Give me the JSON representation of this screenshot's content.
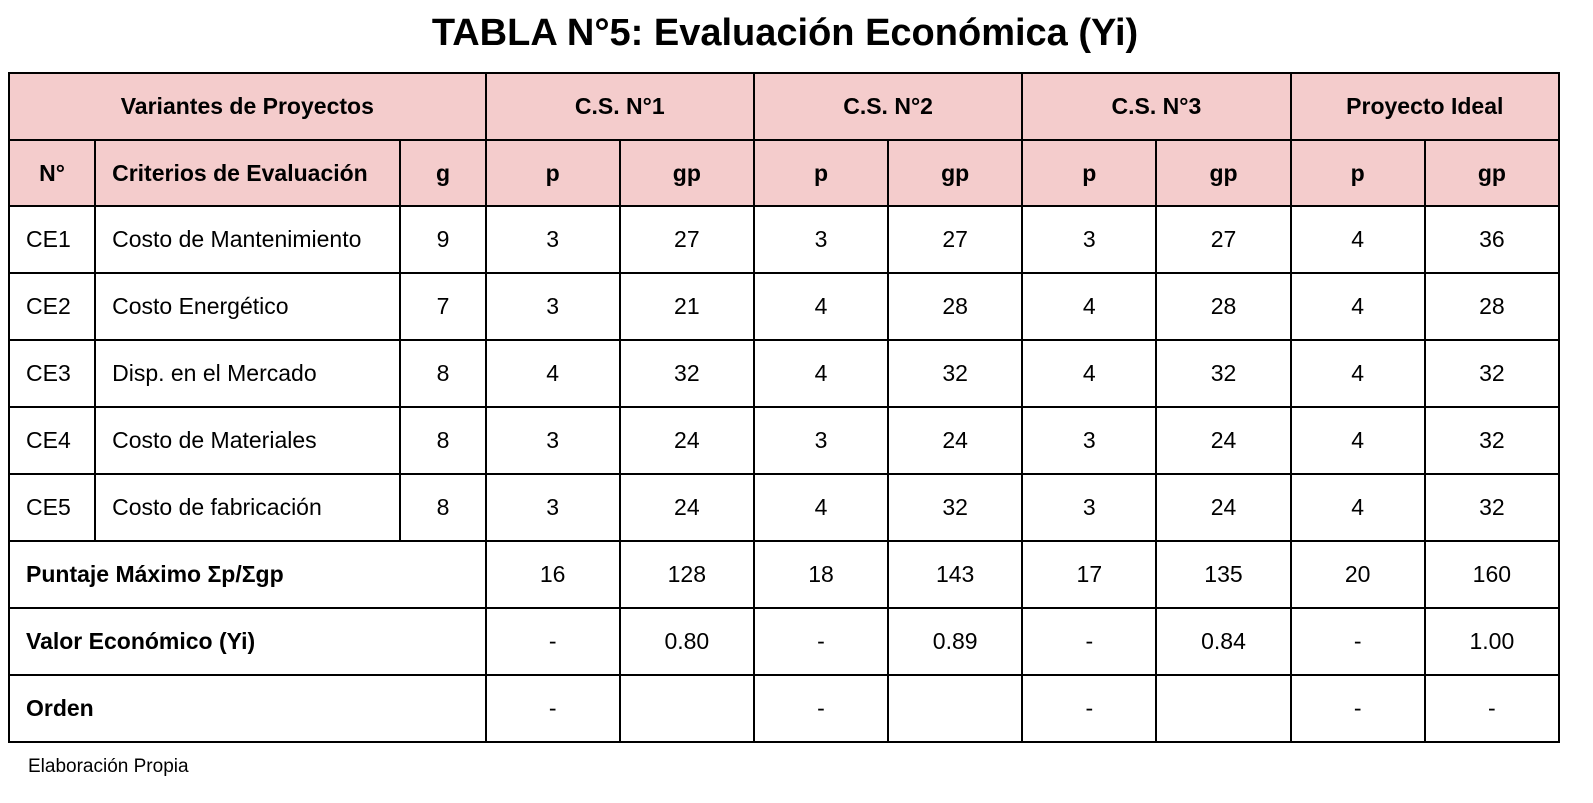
{
  "title": "TABLA N°5: Evaluación Económica (Yi)",
  "header": {
    "group": "Variantes de Proyectos",
    "projects": [
      "C.S. N°1",
      "C.S. N°2",
      "C.S. N°3",
      "Proyecto Ideal"
    ],
    "col_no": "N°",
    "col_criteria": "Criterios de Evaluación",
    "col_g": "g",
    "col_p": "p",
    "col_gp": "gp"
  },
  "rows": [
    {
      "no": "CE1",
      "criterio": "Costo de Mantenimiento",
      "g": "9",
      "vals": [
        "3",
        "27",
        "3",
        "27",
        "3",
        "27",
        "4",
        "36"
      ]
    },
    {
      "no": "CE2",
      "criterio": "Costo Energético",
      "g": "7",
      "vals": [
        "3",
        "21",
        "4",
        "28",
        "4",
        "28",
        "4",
        "28"
      ]
    },
    {
      "no": "CE3",
      "criterio": "Disp. en el Mercado",
      "g": "8",
      "vals": [
        "4",
        "32",
        "4",
        "32",
        "4",
        "32",
        "4",
        "32"
      ]
    },
    {
      "no": "CE4",
      "criterio": "Costo de Materiales",
      "g": "8",
      "vals": [
        "3",
        "24",
        "3",
        "24",
        "3",
        "24",
        "4",
        "32"
      ]
    },
    {
      "no": "CE5",
      "criterio": "Costo de fabricación",
      "g": "8",
      "vals": [
        "3",
        "24",
        "4",
        "32",
        "3",
        "24",
        "4",
        "32"
      ]
    }
  ],
  "summary": [
    {
      "label": "Puntaje Máximo Σp/Σgp",
      "vals": [
        "16",
        "128",
        "18",
        "143",
        "17",
        "135",
        "20",
        "160"
      ]
    },
    {
      "label": "Valor Económico (Yi)",
      "vals": [
        "-",
        "0.80",
        "-",
        "0.89",
        "-",
        "0.84",
        "-",
        "1.00"
      ]
    },
    {
      "label": "Orden",
      "vals": [
        "-",
        "",
        "-",
        "",
        "-",
        "",
        "-",
        "-"
      ]
    }
  ],
  "footnote": "Elaboración Propia"
}
